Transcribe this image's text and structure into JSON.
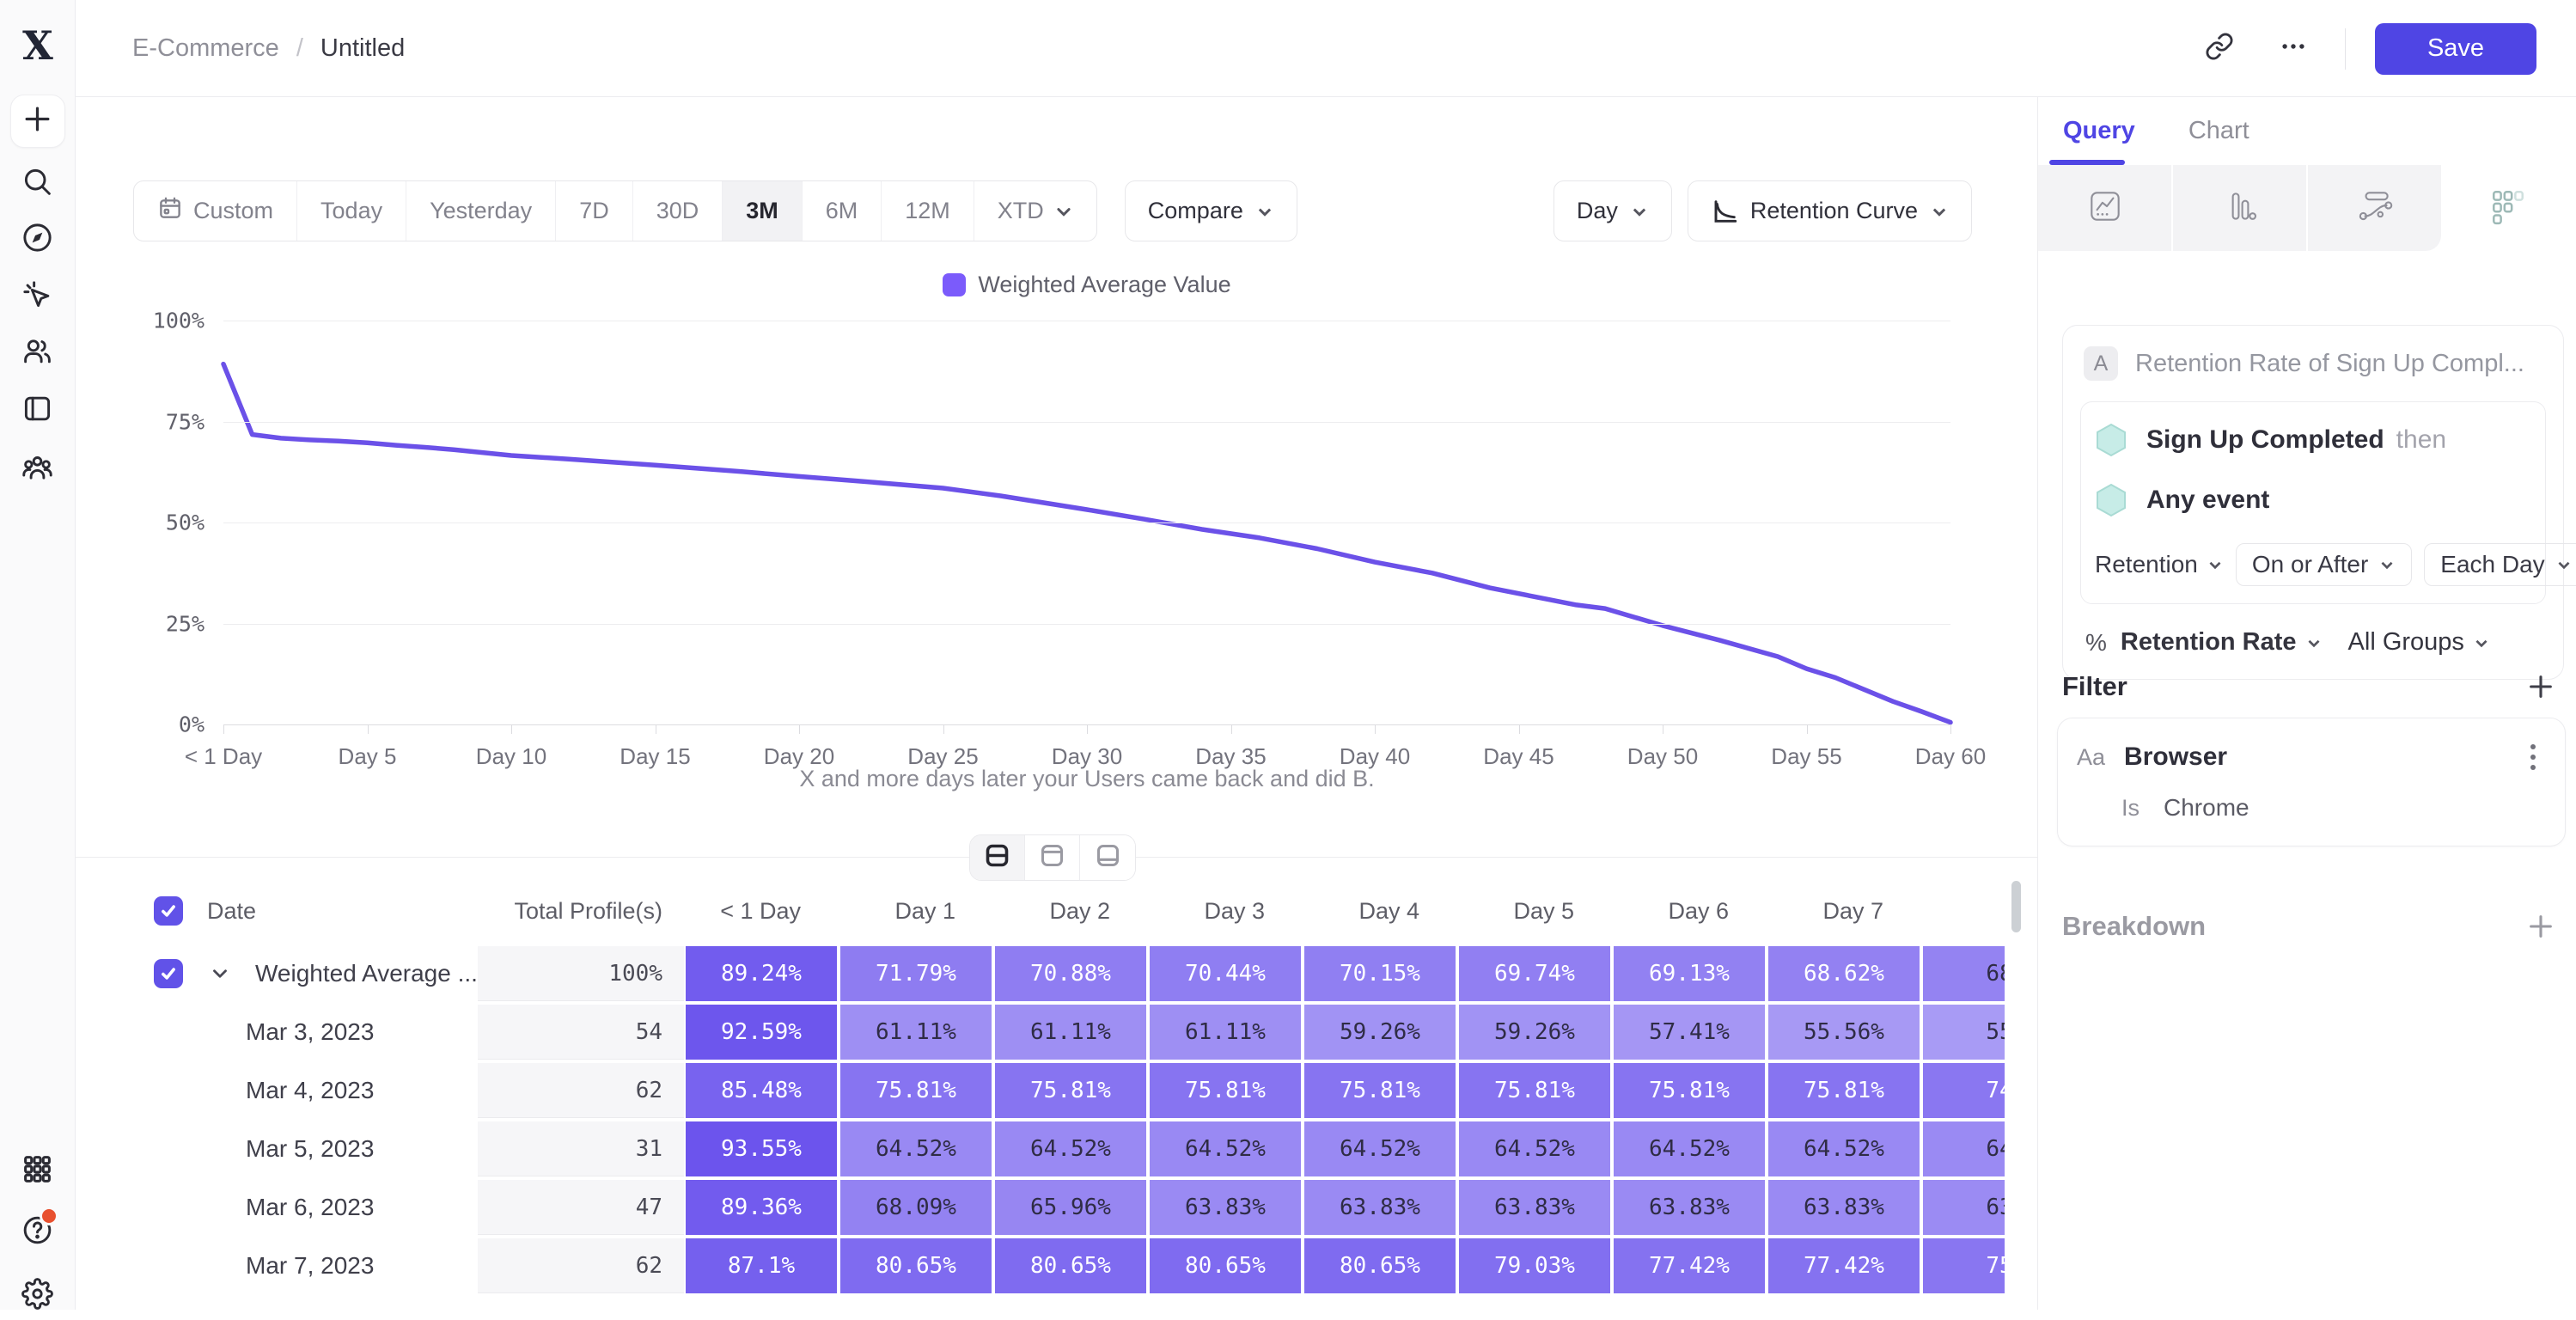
{
  "topbar": {
    "breadcrumb": {
      "section": "E-Commerce",
      "separator": "/",
      "page": "Untitled"
    },
    "save_label": "Save"
  },
  "sidebar": {
    "logo_glyph": "X",
    "icons": [
      "plus",
      "search",
      "compass",
      "cursor-sparkle",
      "users",
      "notebook-panel",
      "users-group",
      "apps-grid",
      "help",
      "gear"
    ]
  },
  "toolbar": {
    "ranges": [
      "Custom",
      "Today",
      "Yesterday",
      "7D",
      "30D",
      "3M",
      "6M",
      "12M",
      "XTD"
    ],
    "selected_range": "3M",
    "compare_label": "Compare",
    "granularity_label": "Day",
    "viz_label": "Retention Curve"
  },
  "chart_data": {
    "type": "line",
    "legend": [
      {
        "name": "Weighted Average Value",
        "color": "#7b5bfb"
      }
    ],
    "legend_position": "top-center",
    "grid": true,
    "xlim": [
      0,
      60
    ],
    "ylim": [
      0,
      100
    ],
    "y_ticks": [
      {
        "label": "100%",
        "value": 100
      },
      {
        "label": "75%",
        "value": 75
      },
      {
        "label": "50%",
        "value": 50
      },
      {
        "label": "25%",
        "value": 25
      },
      {
        "label": "0%",
        "value": 0
      }
    ],
    "x_ticks": [
      {
        "day": 0,
        "label": "< 1 Day"
      },
      {
        "day": 5,
        "label": "Day 5"
      },
      {
        "day": 10,
        "label": "Day 10"
      },
      {
        "day": 15,
        "label": "Day 15"
      },
      {
        "day": 20,
        "label": "Day 20"
      },
      {
        "day": 25,
        "label": "Day 25"
      },
      {
        "day": 30,
        "label": "Day 30"
      },
      {
        "day": 35,
        "label": "Day 35"
      },
      {
        "day": 40,
        "label": "Day 40"
      },
      {
        "day": 45,
        "label": "Day 45"
      },
      {
        "day": 50,
        "label": "Day 50"
      },
      {
        "day": 55,
        "label": "Day 55"
      },
      {
        "day": 60,
        "label": "Day 60"
      }
    ],
    "caption": "X and more days later your Users came back and did B.",
    "series": [
      {
        "name": "Weighted Average Value",
        "color": "#6b51e8",
        "points": [
          [
            0,
            89.24
          ],
          [
            1,
            71.79
          ],
          [
            2,
            70.88
          ],
          [
            3,
            70.44
          ],
          [
            4,
            70.15
          ],
          [
            5,
            69.74
          ],
          [
            6,
            69.13
          ],
          [
            7,
            68.62
          ],
          [
            8,
            68.05
          ],
          [
            10,
            66.6
          ],
          [
            12,
            65.7
          ],
          [
            15,
            64.2
          ],
          [
            18,
            62.6
          ],
          [
            20,
            61.4
          ],
          [
            22,
            60.3
          ],
          [
            25,
            58.5
          ],
          [
            27,
            56.6
          ],
          [
            30,
            53.2
          ],
          [
            32,
            50.8
          ],
          [
            34,
            48.3
          ],
          [
            36,
            46.2
          ],
          [
            38,
            43.5
          ],
          [
            40,
            40.2
          ],
          [
            42,
            37.5
          ],
          [
            44,
            33.8
          ],
          [
            46,
            31.0
          ],
          [
            47,
            29.6
          ],
          [
            48,
            28.7
          ],
          [
            50,
            24.5
          ],
          [
            52,
            20.8
          ],
          [
            54,
            16.8
          ],
          [
            55,
            13.8
          ],
          [
            56,
            11.6
          ],
          [
            58,
            5.7
          ],
          [
            59,
            3.2
          ],
          [
            60,
            0.5
          ]
        ]
      }
    ]
  },
  "view_toggle": {
    "options": [
      "split-view",
      "chart-only-view",
      "table-only-view"
    ],
    "selected": "split-view"
  },
  "table": {
    "select_all_checked": true,
    "cell_base_rgb": [
      97,
      72,
      236
    ],
    "header": {
      "date": "Date",
      "total": "Total Profile(s)",
      "days": [
        "< 1 Day",
        "Day 1",
        "Day 2",
        "Day 3",
        "Day 4",
        "Day 5",
        "Day 6",
        "Day 7"
      ]
    },
    "rows": [
      {
        "label": "Weighted Average ...",
        "summary": true,
        "checked": true,
        "total": "100%",
        "values": [
          "89.24%",
          "71.79%",
          "70.88%",
          "70.44%",
          "70.15%",
          "69.74%",
          "69.13%",
          "68.62%"
        ],
        "clipped_value": "68"
      },
      {
        "label": "Mar 3, 2023",
        "summary": false,
        "total": "54",
        "values": [
          "92.59%",
          "61.11%",
          "61.11%",
          "61.11%",
          "59.26%",
          "59.26%",
          "57.41%",
          "55.56%"
        ],
        "clipped_value": "55"
      },
      {
        "label": "Mar 4, 2023",
        "summary": false,
        "total": "62",
        "values": [
          "85.48%",
          "75.81%",
          "75.81%",
          "75.81%",
          "75.81%",
          "75.81%",
          "75.81%",
          "75.81%"
        ],
        "clipped_value": "74"
      },
      {
        "label": "Mar 5, 2023",
        "summary": false,
        "total": "31",
        "values": [
          "93.55%",
          "64.52%",
          "64.52%",
          "64.52%",
          "64.52%",
          "64.52%",
          "64.52%",
          "64.52%"
        ],
        "clipped_value": "64"
      },
      {
        "label": "Mar 6, 2023",
        "summary": false,
        "total": "47",
        "values": [
          "89.36%",
          "68.09%",
          "65.96%",
          "63.83%",
          "63.83%",
          "63.83%",
          "63.83%",
          "63.83%"
        ],
        "clipped_value": "63"
      },
      {
        "label": "Mar 7, 2023",
        "summary": false,
        "total": "62",
        "values": [
          "87.1%",
          "80.65%",
          "80.65%",
          "80.65%",
          "80.65%",
          "79.03%",
          "77.42%",
          "77.42%"
        ],
        "clipped_value": "75"
      }
    ]
  },
  "panel": {
    "accent": "#4f45e4",
    "tabs": [
      {
        "label": "Query",
        "active": true
      },
      {
        "label": "Chart",
        "active": false
      }
    ],
    "query": {
      "badge": "A",
      "title": "Retention Rate of Sign Up Compl...",
      "events": [
        {
          "name": "Sign Up Completed",
          "suffix": "then"
        },
        {
          "name": "Any event",
          "suffix": ""
        }
      ],
      "controls": {
        "retention": "Retention",
        "window": "On or After",
        "interval": "Each Day"
      },
      "measure": {
        "symbol": "%",
        "metric": "Retention Rate",
        "groups": "All Groups"
      }
    },
    "filter": {
      "heading": "Filter",
      "property_type": "Aa",
      "property": "Browser",
      "operator": "Is",
      "value": "Chrome"
    },
    "breakdown": {
      "heading": "Breakdown"
    }
  }
}
